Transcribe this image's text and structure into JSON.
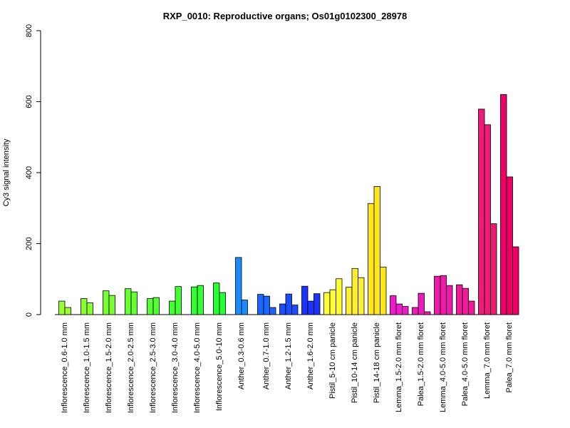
{
  "chart_data": {
    "type": "bar",
    "title": "RXP_0010: Reproductive organs; Os01g0102300_28978",
    "xlabel": "",
    "ylabel": "Cy3 signal intensity",
    "ylim": [
      0,
      800
    ],
    "yticks": [
      0,
      200,
      400,
      600,
      800
    ],
    "grid": false,
    "groups": [
      {
        "label": "Inflorescence_0.6-1.0 mm",
        "color": "#99ff33",
        "values": [
          38,
          20
        ]
      },
      {
        "label": "Inflorescence_1.0-1.5 mm",
        "color": "#88ff33",
        "values": [
          45,
          33
        ]
      },
      {
        "label": "Inflorescence_1.5-2.0 mm",
        "color": "#77ff33",
        "values": [
          67,
          54
        ]
      },
      {
        "label": "Inflorescence_2.0-2.5 mm",
        "color": "#66ff33",
        "values": [
          73,
          64
        ]
      },
      {
        "label": "Inflorescence_2.5-3.0 mm",
        "color": "#55ff33",
        "values": [
          45,
          48
        ]
      },
      {
        "label": "Inflorescence_3.0-4.0 mm",
        "color": "#44ff33",
        "values": [
          38,
          79
        ]
      },
      {
        "label": "Inflorescence_4.0-5.0 mm",
        "color": "#33ff33",
        "values": [
          78,
          82
        ]
      },
      {
        "label": "Inflorescence_5.0-10 mm",
        "color": "#22ff33",
        "values": [
          89,
          62
        ]
      },
      {
        "label": "Anther_0.3-0.6 mm",
        "color": "#1a8cff",
        "values": [
          161,
          41
        ]
      },
      {
        "label": "Anther_0.7-1.0 mm",
        "color": "#1a66ff",
        "values": [
          57,
          52,
          20
        ]
      },
      {
        "label": "Anther_1.2-1.5 mm",
        "color": "#1a4dff",
        "values": [
          30,
          58,
          27
        ]
      },
      {
        "label": "Anther_1.6-2.0 mm",
        "color": "#1a33ff",
        "values": [
          80,
          38,
          59
        ]
      },
      {
        "label": "Pistil_5-10 cm panicle",
        "color": "#ffff33",
        "values": [
          62,
          70,
          101
        ]
      },
      {
        "label": "Pistil_10-14 cm panicle",
        "color": "#ffee33",
        "values": [
          77,
          130,
          104
        ]
      },
      {
        "label": "Pistil_14-18 cm panicle",
        "color": "#ffe61a",
        "values": [
          313,
          361,
          134
        ]
      },
      {
        "label": "Lemma_1.5-2.0 mm floret",
        "color": "#ee1acc",
        "values": [
          53,
          30,
          23
        ]
      },
      {
        "label": "Palea_1.5-2.0 mm floret",
        "color": "#ee1abb",
        "values": [
          20,
          60,
          8
        ]
      },
      {
        "label": "Lemma_4.0-5.0 mm floret",
        "color": "#ee1aaa",
        "values": [
          108,
          110,
          82
        ]
      },
      {
        "label": "Palea_4.0-5.0 mm floret",
        "color": "#ee1a99",
        "values": [
          84,
          74,
          38
        ]
      },
      {
        "label": "Lemma_7.0 mm floret",
        "color": "#ee1a77",
        "values": [
          579,
          535,
          256
        ]
      },
      {
        "label": "Palea_7.0 mm floret",
        "color": "#ee0066",
        "values": [
          620,
          388,
          191
        ]
      }
    ]
  }
}
